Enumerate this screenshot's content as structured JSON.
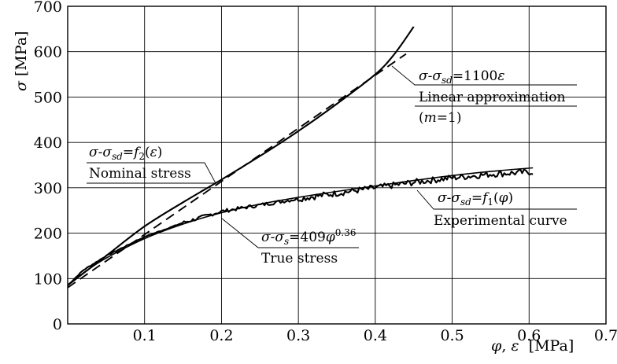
{
  "chart_data": {
    "type": "line",
    "xlabel": "φ, ε  [MPa]",
    "ylabel": "σ [MPa]",
    "xlim": [
      0,
      0.7
    ],
    "ylim": [
      0,
      700
    ],
    "x_ticks": [
      "0.1",
      "0.2",
      "0.3",
      "0.4",
      "0.5",
      "0.6",
      "0.7"
    ],
    "y_ticks": [
      "0",
      "100",
      "200",
      "300",
      "400",
      "500",
      "600",
      "700"
    ],
    "grid": true,
    "series": [
      {
        "style": "solid",
        "points": [
          [
            0.0,
            85
          ],
          [
            0.05,
            150
          ],
          [
            0.1,
            215
          ],
          [
            0.15,
            268
          ],
          [
            0.2,
            318
          ],
          [
            0.25,
            370
          ],
          [
            0.3,
            425
          ],
          [
            0.35,
            485
          ],
          [
            0.4,
            550
          ],
          [
            0.425,
            595
          ],
          [
            0.45,
            655
          ]
        ]
      },
      {
        "style": "dashed",
        "points": [
          [
            0.0,
            80
          ],
          [
            0.44,
            595
          ]
        ]
      },
      {
        "style": "noisy",
        "points": [
          [
            0.0,
            85
          ],
          [
            0.02,
            118
          ],
          [
            0.05,
            150
          ],
          [
            0.1,
            192
          ],
          [
            0.15,
            223
          ],
          [
            0.2,
            248
          ],
          [
            0.25,
            262
          ],
          [
            0.3,
            276
          ],
          [
            0.35,
            288
          ],
          [
            0.4,
            300
          ],
          [
            0.45,
            312
          ],
          [
            0.5,
            322
          ],
          [
            0.55,
            330
          ],
          [
            0.605,
            335
          ]
        ]
      },
      {
        "style": "thin",
        "points": [
          [
            0.0,
            85
          ],
          [
            0.02,
            112
          ],
          [
            0.05,
            145
          ],
          [
            0.1,
            188
          ],
          [
            0.15,
            220
          ],
          [
            0.2,
            245
          ],
          [
            0.25,
            264
          ],
          [
            0.3,
            279
          ],
          [
            0.35,
            292
          ],
          [
            0.4,
            304
          ],
          [
            0.45,
            316
          ],
          [
            0.5,
            327
          ],
          [
            0.55,
            336
          ],
          [
            0.605,
            344
          ]
        ]
      }
    ],
    "annotations": {
      "linear_formula": "σ-σsd=1100ε",
      "linear_label": "Linear approximation",
      "linear_sub": "(m=1)",
      "nominal_formula": "σ-σsd=f2(ε)",
      "nominal_label": "Nominal stress",
      "true_formula": "σ-σs=409φ0.36",
      "true_label": "True stress",
      "exp_formula": "σ-σsd=f1(φ)",
      "exp_label": "Experimental curve"
    }
  }
}
